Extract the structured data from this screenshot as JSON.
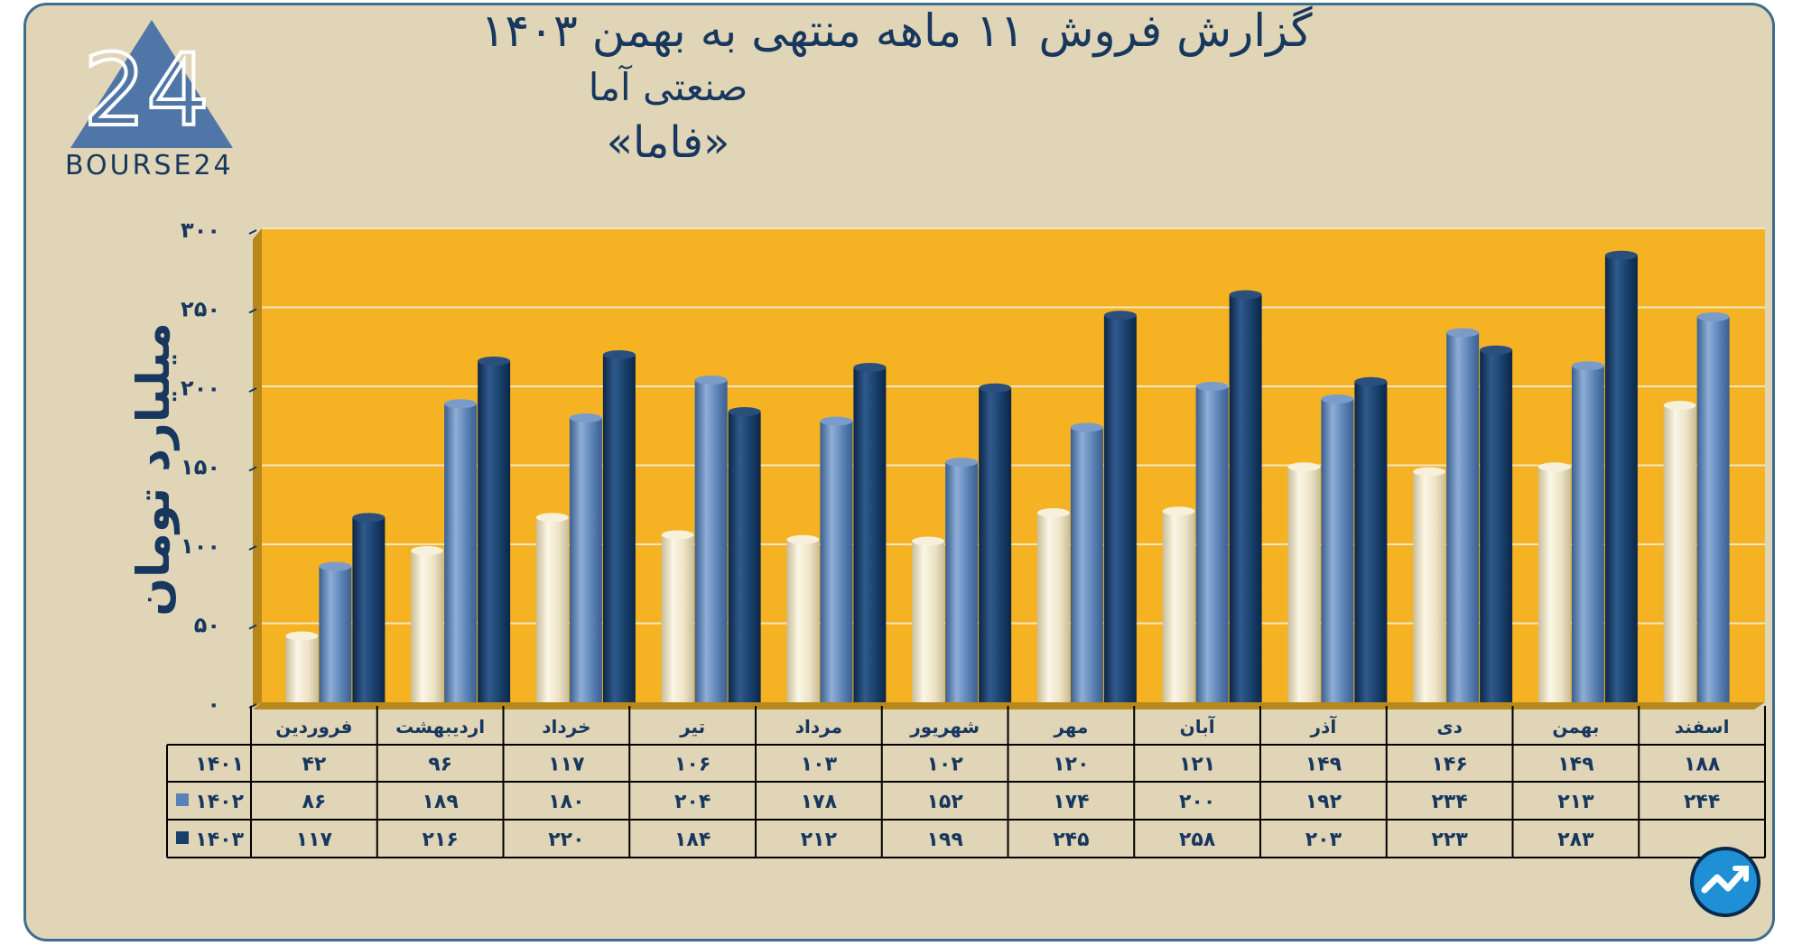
{
  "header": {
    "line1": "گزارش  فروش ۱۱ ماهه منتهی به بهمن ۱۴۰۳",
    "line2": "صنعتی آما",
    "line3": "«فاما»"
  },
  "logo": {
    "text": "BOURSE24",
    "mark": "24",
    "icon": "triangle-logo-icon"
  },
  "corner_badge": {
    "icon": "trend-chart-icon"
  },
  "colors": {
    "plot_bg": "#f5b323",
    "year_1401": "#ede3c6",
    "year_1402": "#5b82b6",
    "year_1403": "#173f6b",
    "text": "#17375e"
  },
  "chart_data": {
    "type": "bar",
    "ylabel": "میلیارد تومان",
    "ylim": [
      0,
      300
    ],
    "yticks": [
      "۰",
      "۵۰",
      "۱۰۰",
      "۱۵۰",
      "۲۰۰",
      "۲۵۰",
      "۳۰۰"
    ],
    "ytick_values": [
      0,
      50,
      100,
      150,
      200,
      250,
      300
    ],
    "grid": true,
    "categories": [
      "فروردین",
      "اردیبهشت",
      "خرداد",
      "تیر",
      "مرداد",
      "شهریور",
      "مهر",
      "آبان",
      "آذر",
      "دی",
      "بهمن",
      "اسفند"
    ],
    "series": [
      {
        "name": "۱۴۰۱",
        "values": [
          42,
          96,
          117,
          106,
          103,
          102,
          120,
          121,
          149,
          146,
          149,
          188
        ],
        "labels": [
          "۴۲",
          "۹۶",
          "۱۱۷",
          "۱۰۶",
          "۱۰۳",
          "۱۰۲",
          "۱۲۰",
          "۱۲۱",
          "۱۴۹",
          "۱۴۶",
          "۱۴۹",
          "۱۸۸"
        ]
      },
      {
        "name": "۱۴۰۲",
        "values": [
          86,
          189,
          180,
          204,
          178,
          152,
          174,
          200,
          192,
          234,
          213,
          244
        ],
        "labels": [
          "۸۶",
          "۱۸۹",
          "۱۸۰",
          "۲۰۴",
          "۱۷۸",
          "۱۵۲",
          "۱۷۴",
          "۲۰۰",
          "۱۹۲",
          "۲۳۴",
          "۲۱۳",
          "۲۴۴"
        ]
      },
      {
        "name": "۱۴۰۳",
        "values": [
          117,
          216,
          220,
          184,
          212,
          199,
          245,
          258,
          203,
          223,
          283,
          null
        ],
        "labels": [
          "۱۱۷",
          "۲۱۶",
          "۲۲۰",
          "۱۸۴",
          "۲۱۲",
          "۱۹۹",
          "۲۴۵",
          "۲۵۸",
          "۲۰۳",
          "۲۲۳",
          "۲۸۳",
          ""
        ]
      }
    ]
  }
}
